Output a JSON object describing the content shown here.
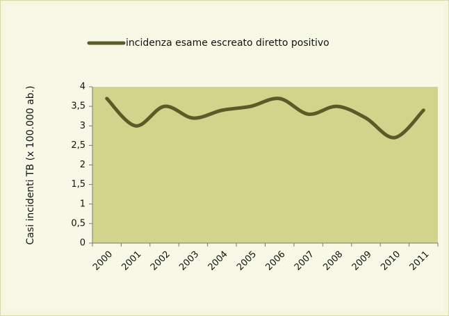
{
  "chart_data": {
    "type": "line",
    "y_label": "Casi incidenti TB (x 100.000 ab.)",
    "categories": [
      "2000",
      "2001",
      "2002",
      "2003",
      "2004",
      "2005",
      "2006",
      "2007",
      "2008",
      "2009",
      "2010",
      "2011"
    ],
    "series": [
      {
        "name": "incidenza esame escreato diretto positivo",
        "color": "#5b5b2a",
        "values": [
          3.7,
          3.0,
          3.5,
          3.2,
          3.4,
          3.5,
          3.7,
          3.3,
          3.5,
          3.2,
          2.7,
          3.4
        ]
      }
    ],
    "ylim": [
      0,
      4
    ],
    "yticks": [
      0,
      {
        "value": 0.5,
        "label": "0,5"
      },
      1,
      {
        "value": 1.5,
        "label": "1,5"
      },
      2,
      {
        "value": 2.5,
        "label": "2,5"
      },
      3,
      {
        "value": 3.5,
        "label": "3,5"
      },
      4
    ],
    "grid": false,
    "smooth": true,
    "legend": "top"
  }
}
